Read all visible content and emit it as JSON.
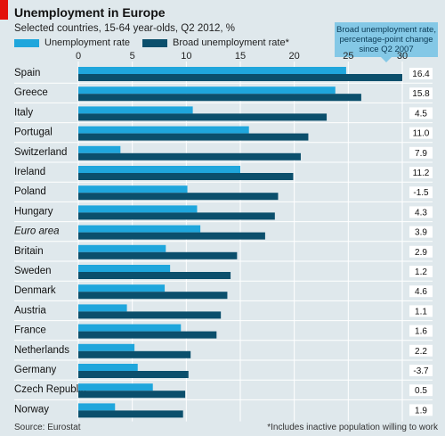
{
  "title": "Unemployment in Europe",
  "subtitle": "Selected countries, 15-64 year-olds, Q2 2012, %",
  "legend": {
    "rate_label": "Unemployment rate",
    "broad_label": "Broad unemployment rate*"
  },
  "callout": {
    "line1": "Broad unemployment rate,",
    "line2": "percentage-point change",
    "line3": "since Q2 2007"
  },
  "source": "Source: Eurostat",
  "footnote": "*Includes inactive population willing to work",
  "colors": {
    "rate": "#1fa6dc",
    "broad": "#0b4f6c",
    "background": "#dfe8ec",
    "grid": "#ffffff",
    "changeBox": "#ffffff"
  },
  "chart_data": {
    "type": "bar",
    "orientation": "horizontal",
    "xlim": [
      0,
      30
    ],
    "ticks": [
      "0",
      "5",
      "10",
      "15",
      "20",
      "25",
      "30"
    ],
    "categories": [
      "Spain",
      "Greece",
      "Italy",
      "Portugal",
      "Switzerland",
      "Ireland",
      "Poland",
      "Hungary",
      "Euro area",
      "Britain",
      "Sweden",
      "Denmark",
      "Austria",
      "France",
      "Netherlands",
      "Germany",
      "Czech Republic",
      "Norway"
    ],
    "italic_categories": [
      "Euro area"
    ],
    "series": [
      {
        "name": "Unemployment rate",
        "values": [
          24.8,
          23.8,
          10.6,
          15.8,
          3.9,
          15.0,
          10.1,
          11.0,
          11.3,
          8.1,
          8.5,
          8.0,
          4.5,
          9.5,
          5.2,
          5.5,
          6.9,
          3.4
        ]
      },
      {
        "name": "Broad unemployment rate*",
        "values": [
          30.0,
          26.2,
          23.0,
          21.3,
          20.6,
          19.9,
          18.5,
          18.2,
          17.3,
          14.7,
          14.1,
          13.8,
          13.2,
          12.8,
          10.4,
          10.2,
          9.9,
          9.7
        ]
      }
    ],
    "change_labels": [
      "16.4",
      "15.8",
      "4.5",
      "11.0",
      "7.9",
      "11.2",
      "-1.5",
      "4.3",
      "3.9",
      "2.9",
      "1.2",
      "4.6",
      "1.1",
      "1.6",
      "2.2",
      "-3.7",
      "0.5",
      "1.9"
    ]
  }
}
